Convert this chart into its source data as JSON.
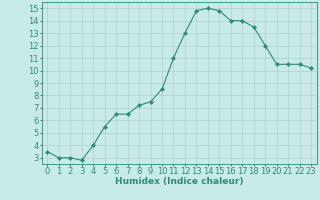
{
  "x": [
    0,
    1,
    2,
    3,
    4,
    5,
    6,
    7,
    8,
    9,
    10,
    11,
    12,
    13,
    14,
    15,
    16,
    17,
    18,
    19,
    20,
    21,
    22,
    23
  ],
  "y": [
    3.5,
    3.0,
    3.0,
    2.8,
    4.0,
    5.5,
    6.5,
    6.5,
    7.2,
    7.5,
    8.5,
    11.0,
    13.0,
    14.8,
    15.0,
    14.8,
    14.0,
    14.0,
    13.5,
    12.0,
    10.5,
    10.5,
    10.5,
    10.2
  ],
  "line_color": "#2e8b74",
  "marker": "D",
  "marker_size": 2.0,
  "bg_color": "#c8eae8",
  "grid_color": "#a8c8c4",
  "xlabel": "Humidex (Indice chaleur)",
  "ylim": [
    2.5,
    15.5
  ],
  "xlim": [
    -0.5,
    23.5
  ],
  "yticks": [
    3,
    4,
    5,
    6,
    7,
    8,
    9,
    10,
    11,
    12,
    13,
    14,
    15
  ],
  "xticks": [
    0,
    1,
    2,
    3,
    4,
    5,
    6,
    7,
    8,
    9,
    10,
    11,
    12,
    13,
    14,
    15,
    16,
    17,
    18,
    19,
    20,
    21,
    22,
    23
  ],
  "xlabel_fontsize": 6.5,
  "tick_fontsize": 6.0
}
